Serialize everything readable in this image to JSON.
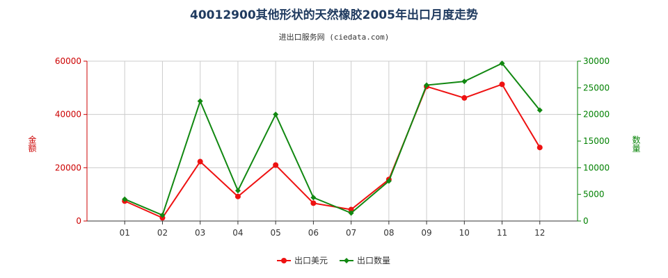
{
  "chart_data": {
    "type": "line",
    "title": "40012900其他形状的天然橡胶2005年出口月度走势",
    "subtitle": "进出口服务网 (ciedata.com)",
    "categories": [
      "01",
      "02",
      "03",
      "04",
      "05",
      "06",
      "07",
      "08",
      "09",
      "10",
      "11",
      "12"
    ],
    "y_left": {
      "label": "金额",
      "range": [
        0,
        60000
      ],
      "ticks": [
        0,
        20000,
        40000,
        60000
      ],
      "color": "#cc0000"
    },
    "y_right": {
      "label": "数量",
      "range": [
        0,
        30000
      ],
      "ticks": [
        0,
        5000,
        10000,
        15000,
        20000,
        25000,
        30000
      ],
      "color": "#008000"
    },
    "grid": true,
    "legend_position": "bottom-center",
    "series": [
      {
        "name": "出口美元",
        "axis": "left",
        "color": "#ee1111",
        "values": [
          7500,
          1200,
          22300,
          9200,
          21000,
          6700,
          4300,
          15600,
          50500,
          46200,
          51300,
          27600
        ]
      },
      {
        "name": "出口数量",
        "axis": "right",
        "color": "#118811",
        "values": [
          4100,
          1100,
          22500,
          5700,
          20000,
          4400,
          1500,
          7500,
          25500,
          26200,
          29600,
          20800
        ]
      }
    ]
  }
}
